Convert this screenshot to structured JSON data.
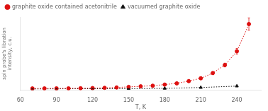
{
  "chart_data": {
    "type": "scatter",
    "xlabel": "T, K",
    "ylabel": "spin probe's libration intensity, c.u.",
    "xlim": [
      60,
      260
    ],
    "xticks": [
      60,
      90,
      120,
      150,
      180,
      210,
      240
    ],
    "ylim": [
      0.0,
      1.55
    ],
    "yticks": [],
    "tick_labels": "x",
    "grid": false,
    "legend": "upper left",
    "series": [
      {
        "name": "graphite oxide contained acetonitrile",
        "color": "#dd1111",
        "marker": "circle",
        "line_style": "dotted",
        "x": [
          70,
          80,
          90,
          100,
          110,
          120,
          130,
          140,
          150,
          160,
          170,
          180,
          190,
          200,
          210,
          220,
          230,
          240,
          250
        ],
        "values": [
          0.04,
          0.041,
          0.042,
          0.042,
          0.044,
          0.048,
          0.053,
          0.061,
          0.073,
          0.085,
          0.098,
          0.122,
          0.148,
          0.195,
          0.255,
          0.365,
          0.535,
          0.825,
          1.4
        ],
        "yerr": [
          0.004,
          0.004,
          0.004,
          0.004,
          0.004,
          0.005,
          0.005,
          0.005,
          0.006,
          0.007,
          0.008,
          0.01,
          0.012,
          0.015,
          0.02,
          0.028,
          0.04,
          0.06,
          0.13
        ]
      },
      {
        "name": "vacuumed graphite oxide",
        "color": "#111111",
        "marker": "triangle",
        "line_style": "dotted",
        "x": [
          70,
          90,
          120,
          150,
          180,
          210,
          240
        ],
        "values": [
          0.03,
          0.033,
          0.035,
          0.036,
          0.042,
          0.06,
          0.09
        ],
        "yerr": [
          0.003,
          0.003,
          0.003,
          0.003,
          0.004,
          0.005,
          0.007
        ]
      }
    ]
  }
}
